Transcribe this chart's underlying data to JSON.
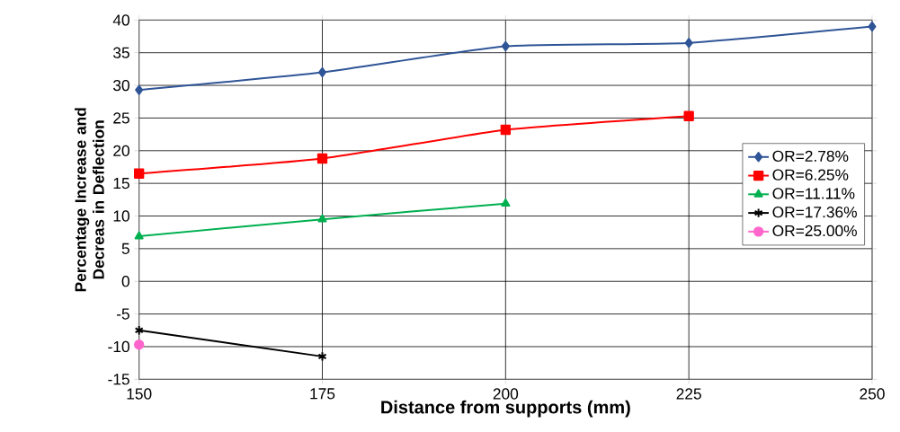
{
  "chart_data": {
    "type": "line",
    "xlabel": "Distance from supports (mm)",
    "ylabel": "Percentage Increase and Decreas in Deflection",
    "x": [
      150,
      175,
      200,
      225,
      250
    ],
    "xlim": [
      150,
      250
    ],
    "xticks": [
      150,
      175,
      200,
      225,
      250
    ],
    "ylim": [
      -15,
      40
    ],
    "yticks": [
      -15,
      -10,
      -5,
      0,
      5,
      10,
      15,
      20,
      25,
      30,
      35,
      40
    ],
    "grid": true,
    "legend": "right",
    "series": [
      {
        "name": "OR=2.78%",
        "color": "#2f5597",
        "marker": "diamond",
        "values": [
          29.3,
          32,
          36,
          36.5,
          39
        ]
      },
      {
        "name": "OR=6.25%",
        "color": "#ff0000",
        "marker": "square",
        "values": [
          16.5,
          18.8,
          23.2,
          25.3,
          null
        ]
      },
      {
        "name": "OR=11.11%",
        "color": "#00b050",
        "marker": "triangle",
        "values": [
          6.9,
          9.5,
          11.9,
          null,
          null
        ]
      },
      {
        "name": "OR=17.36%",
        "color": "#000000",
        "marker": "cross",
        "values": [
          -7.5,
          -11.5,
          null,
          null,
          null
        ]
      },
      {
        "name": "OR=25.00%",
        "color": "#ff66cc",
        "marker": "circle",
        "values": [
          -9.7,
          null,
          null,
          null,
          null
        ]
      }
    ]
  }
}
